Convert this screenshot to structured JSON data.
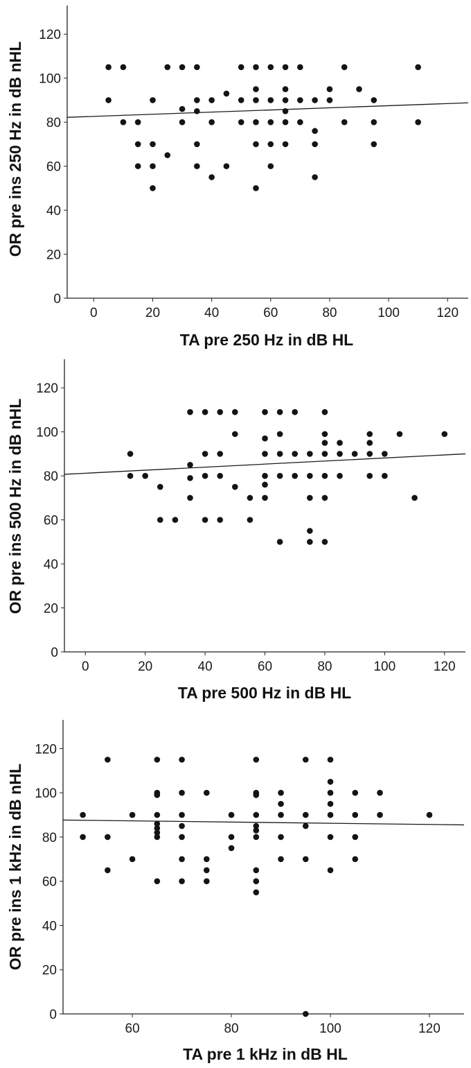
{
  "chart_data": [
    {
      "type": "scatter",
      "title": "",
      "xlabel": "TA pre 250 Hz in dB HL",
      "ylabel": "OR pre ins 250 Hz in dB nHL",
      "xlim": [
        -9,
        127
      ],
      "ylim": [
        0,
        133
      ],
      "xticks": [
        "0",
        "20",
        "40",
        "60",
        "80",
        "100",
        "120"
      ],
      "yticks": [
        "0",
        "20",
        "40",
        "60",
        "80",
        "100",
        "120"
      ],
      "grid": false,
      "fit_line": {
        "x": [
          -9,
          127
        ],
        "y": [
          82.2,
          88.8
        ]
      },
      "points": [
        [
          5,
          105
        ],
        [
          10,
          105
        ],
        [
          5,
          90
        ],
        [
          10,
          80
        ],
        [
          15,
          80
        ],
        [
          15,
          70
        ],
        [
          15,
          60
        ],
        [
          20,
          90
        ],
        [
          20,
          70
        ],
        [
          20,
          60
        ],
        [
          20,
          50
        ],
        [
          25,
          105
        ],
        [
          25,
          65
        ],
        [
          30,
          105
        ],
        [
          30,
          86
        ],
        [
          30,
          80
        ],
        [
          35,
          105
        ],
        [
          35,
          90
        ],
        [
          35,
          85
        ],
        [
          35,
          70
        ],
        [
          35,
          60
        ],
        [
          40,
          90
        ],
        [
          40,
          80
        ],
        [
          40,
          55
        ],
        [
          45,
          93
        ],
        [
          45,
          60
        ],
        [
          50,
          105
        ],
        [
          50,
          90
        ],
        [
          50,
          80
        ],
        [
          55,
          105
        ],
        [
          55,
          95
        ],
        [
          55,
          90
        ],
        [
          55,
          80
        ],
        [
          55,
          70
        ],
        [
          55,
          50
        ],
        [
          60,
          105
        ],
        [
          60,
          90
        ],
        [
          60,
          80
        ],
        [
          60,
          70
        ],
        [
          60,
          60
        ],
        [
          65,
          105
        ],
        [
          65,
          95
        ],
        [
          65,
          90
        ],
        [
          65,
          85
        ],
        [
          65,
          80
        ],
        [
          65,
          70
        ],
        [
          70,
          105
        ],
        [
          70,
          90
        ],
        [
          70,
          80
        ],
        [
          75,
          90
        ],
        [
          75,
          76
        ],
        [
          75,
          70
        ],
        [
          75,
          55
        ],
        [
          80,
          95
        ],
        [
          80,
          90
        ],
        [
          85,
          105
        ],
        [
          85,
          80
        ],
        [
          90,
          95
        ],
        [
          95,
          90
        ],
        [
          95,
          80
        ],
        [
          95,
          70
        ],
        [
          110,
          105
        ],
        [
          110,
          80
        ]
      ]
    },
    {
      "type": "scatter",
      "title": "",
      "xlabel": "TA pre 500 Hz in dB HL",
      "ylabel": "OR pre ins 500 Hz in dB nHL",
      "xlim": [
        -7,
        127
      ],
      "ylim": [
        0,
        133
      ],
      "xticks": [
        "0",
        "20",
        "40",
        "60",
        "80",
        "100",
        "120"
      ],
      "yticks": [
        "0",
        "20",
        "40",
        "60",
        "80",
        "100",
        "120"
      ],
      "grid": false,
      "fit_line": {
        "x": [
          -7,
          127
        ],
        "y": [
          80.7,
          90.0
        ]
      },
      "points": [
        [
          15,
          90
        ],
        [
          15,
          80
        ],
        [
          20,
          80
        ],
        [
          25,
          75
        ],
        [
          25,
          60
        ],
        [
          30,
          60
        ],
        [
          35,
          109
        ],
        [
          35,
          85
        ],
        [
          35,
          79
        ],
        [
          35,
          70
        ],
        [
          40,
          109
        ],
        [
          40,
          90
        ],
        [
          40,
          80
        ],
        [
          40,
          60
        ],
        [
          45,
          109
        ],
        [
          45,
          90
        ],
        [
          45,
          80
        ],
        [
          45,
          60
        ],
        [
          50,
          109
        ],
        [
          50,
          99
        ],
        [
          50,
          75
        ],
        [
          55,
          70
        ],
        [
          55,
          60
        ],
        [
          60,
          109
        ],
        [
          60,
          97
        ],
        [
          60,
          90
        ],
        [
          60,
          80
        ],
        [
          60,
          76
        ],
        [
          60,
          70
        ],
        [
          65,
          109
        ],
        [
          65,
          99
        ],
        [
          65,
          90
        ],
        [
          65,
          80
        ],
        [
          65,
          50
        ],
        [
          70,
          109
        ],
        [
          70,
          90
        ],
        [
          70,
          80
        ],
        [
          75,
          90
        ],
        [
          75,
          80
        ],
        [
          75,
          70
        ],
        [
          75,
          55
        ],
        [
          75,
          50
        ],
        [
          80,
          109
        ],
        [
          80,
          99
        ],
        [
          80,
          95
        ],
        [
          80,
          90
        ],
        [
          80,
          80
        ],
        [
          80,
          70
        ],
        [
          80,
          50
        ],
        [
          85,
          95
        ],
        [
          85,
          90
        ],
        [
          85,
          80
        ],
        [
          90,
          90
        ],
        [
          95,
          99
        ],
        [
          95,
          95
        ],
        [
          95,
          90
        ],
        [
          95,
          80
        ],
        [
          100,
          90
        ],
        [
          100,
          80
        ],
        [
          105,
          99
        ],
        [
          110,
          70
        ],
        [
          120,
          99
        ]
      ]
    },
    {
      "type": "scatter",
      "title": "",
      "xlabel": "TA pre 1 kHz in dB HL",
      "ylabel": "OR pre ins 1 kHz in dB nHL",
      "xlim": [
        46,
        127
      ],
      "ylim": [
        0,
        133
      ],
      "xticks": [
        "60",
        "80",
        "100",
        "120"
      ],
      "yticks": [
        "0",
        "20",
        "40",
        "60",
        "80",
        "100",
        "120"
      ],
      "grid": false,
      "fit_line": {
        "x": [
          46,
          127
        ],
        "y": [
          87.7,
          85.5
        ]
      },
      "points": [
        [
          50,
          90
        ],
        [
          50,
          80
        ],
        [
          55,
          115
        ],
        [
          55,
          80
        ],
        [
          55,
          65
        ],
        [
          60,
          90
        ],
        [
          60,
          70
        ],
        [
          65,
          115
        ],
        [
          65,
          100
        ],
        [
          65,
          99
        ],
        [
          65,
          90
        ],
        [
          65,
          86
        ],
        [
          65,
          84
        ],
        [
          65,
          82
        ],
        [
          65,
          80
        ],
        [
          65,
          60
        ],
        [
          70,
          115
        ],
        [
          70,
          100
        ],
        [
          70,
          90
        ],
        [
          70,
          85
        ],
        [
          70,
          80
        ],
        [
          70,
          70
        ],
        [
          70,
          60
        ],
        [
          75,
          100
        ],
        [
          75,
          70
        ],
        [
          75,
          65
        ],
        [
          75,
          60
        ],
        [
          80,
          90
        ],
        [
          80,
          80
        ],
        [
          80,
          75
        ],
        [
          85,
          115
        ],
        [
          85,
          100
        ],
        [
          85,
          99
        ],
        [
          85,
          90
        ],
        [
          85,
          85
        ],
        [
          85,
          83
        ],
        [
          85,
          80
        ],
        [
          85,
          65
        ],
        [
          85,
          60
        ],
        [
          85,
          55
        ],
        [
          90,
          100
        ],
        [
          90,
          95
        ],
        [
          90,
          90
        ],
        [
          90,
          80
        ],
        [
          90,
          70
        ],
        [
          95,
          115
        ],
        [
          95,
          90
        ],
        [
          95,
          85
        ],
        [
          95,
          70
        ],
        [
          95,
          0
        ],
        [
          100,
          115
        ],
        [
          100,
          105
        ],
        [
          100,
          100
        ],
        [
          100,
          95
        ],
        [
          100,
          90
        ],
        [
          100,
          80
        ],
        [
          100,
          65
        ],
        [
          105,
          100
        ],
        [
          105,
          90
        ],
        [
          105,
          80
        ],
        [
          105,
          70
        ],
        [
          110,
          100
        ],
        [
          110,
          90
        ],
        [
          120,
          90
        ]
      ]
    }
  ]
}
